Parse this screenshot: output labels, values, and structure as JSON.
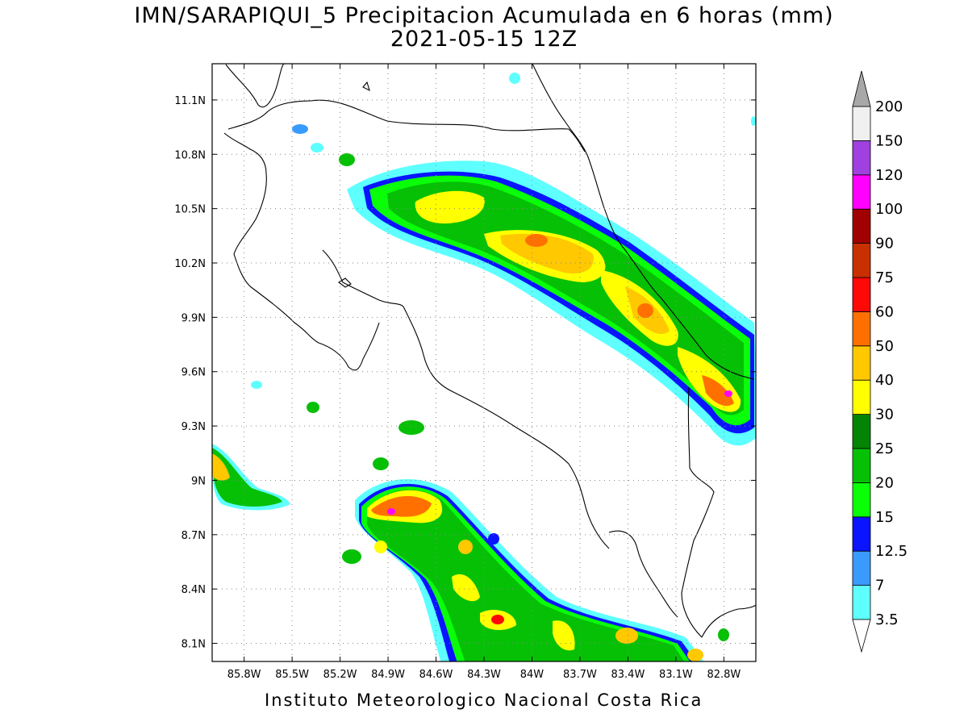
{
  "title_line1": "IMN/SARAPIQUI_5 Precipitacion Acumulada en 6 horas (mm)",
  "title_line2": "2021-05-15 12Z",
  "footer": "Instituto Meteorologico Nacional Costa Rica",
  "map": {
    "lon_range": [
      -86.0,
      -82.6
    ],
    "lat_range": [
      8.0,
      11.3
    ],
    "lon_ticks": [
      "85.8W",
      "85.5W",
      "85.2W",
      "84.9W",
      "84.6W",
      "84.3W",
      "84W",
      "83.7W",
      "83.4W",
      "83.1W",
      "82.8W"
    ],
    "lat_ticks": [
      "11.1N",
      "10.8N",
      "10.5N",
      "10.2N",
      "9.9N",
      "9.6N",
      "9.3N",
      "9N",
      "8.7N",
      "8.4N",
      "8.1N"
    ]
  },
  "colorbar": {
    "labels": [
      "3.5",
      "7",
      "12.5",
      "15",
      "20",
      "25",
      "30",
      "40",
      "50",
      "60",
      "75",
      "90",
      "100",
      "120",
      "150",
      "200"
    ],
    "colors": [
      "#5effff",
      "#3a9bff",
      "#0a14ff",
      "#08ff08",
      "#06c006",
      "#048404",
      "#ffff00",
      "#ffc800",
      "#ff7000",
      "#ff0808",
      "#c83000",
      "#a00000",
      "#ff00ff",
      "#a040e0",
      "#f0f0f0"
    ],
    "over_color": "#a8a8a8",
    "under_color": "#ffffff"
  }
}
